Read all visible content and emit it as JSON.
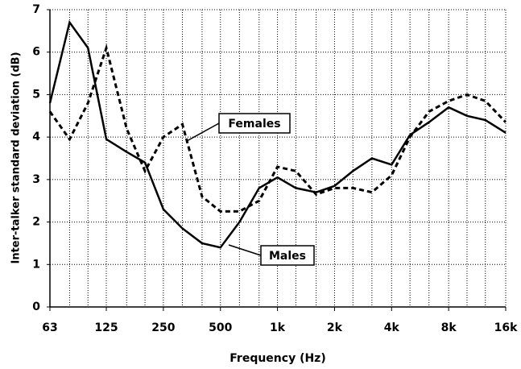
{
  "chart_data": {
    "type": "line",
    "x_label": "Frequency (Hz)",
    "y_label": "Inter-talker standard deviation (dB)",
    "x": [
      63,
      80,
      100,
      125,
      160,
      200,
      250,
      315,
      400,
      500,
      630,
      800,
      1000,
      1250,
      1600,
      2000,
      2500,
      3150,
      4000,
      5000,
      6300,
      8000,
      10000,
      12500,
      16000
    ],
    "series": [
      {
        "name": "Males",
        "color": "#000000",
        "dash": "solid",
        "values": [
          4.8,
          6.7,
          6.1,
          3.95,
          3.65,
          3.4,
          2.3,
          1.85,
          1.5,
          1.4,
          2.0,
          2.8,
          3.05,
          2.8,
          2.7,
          2.85,
          3.2,
          3.5,
          3.35,
          4.05,
          4.35,
          4.7,
          4.5,
          4.4,
          4.1
        ]
      },
      {
        "name": "Females",
        "color": "#000000",
        "dash": "dashed",
        "values": [
          4.6,
          3.95,
          4.8,
          6.1,
          4.2,
          3.2,
          4.0,
          4.3,
          2.6,
          2.25,
          2.25,
          2.5,
          3.3,
          3.2,
          2.65,
          2.8,
          2.8,
          2.7,
          3.1,
          4.0,
          4.6,
          4.85,
          5.0,
          4.85,
          4.35
        ]
      }
    ],
    "x_scale": "log",
    "xlim": [
      63,
      16000
    ],
    "xticks": [
      63,
      125,
      250,
      500,
      {
        "value": 1000,
        "label": "1k"
      },
      {
        "value": 2000,
        "label": "2k"
      },
      {
        "value": 4000,
        "label": "4k"
      },
      {
        "value": 8000,
        "label": "8k"
      },
      {
        "value": 16000,
        "label": "16k"
      }
    ],
    "ylim": [
      0,
      7
    ],
    "yticks": [
      0,
      1,
      2,
      3,
      4,
      5,
      6,
      7
    ],
    "grid": true
  }
}
